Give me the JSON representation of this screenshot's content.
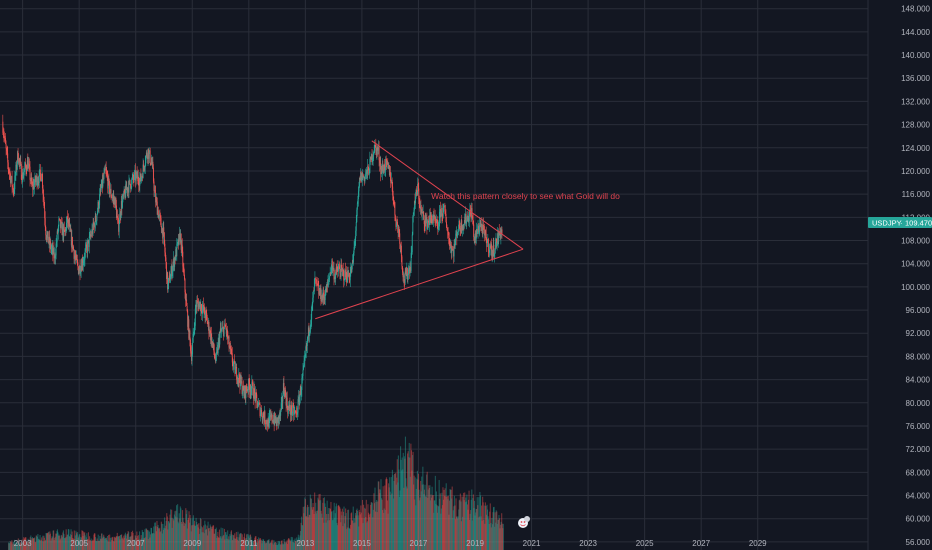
{
  "chart_data": {
    "type": "candlestick",
    "title": "",
    "xlabel": "",
    "ylabel": "",
    "symbol_badge": {
      "symbol": "USDJPY",
      "price_text": "109.470",
      "color": "#26a69a"
    },
    "y_ticks": [
      "56.000",
      "60.000",
      "64.000",
      "68.000",
      "72.000",
      "76.000",
      "80.000",
      "84.000",
      "88.000",
      "92.000",
      "96.000",
      "100.000",
      "104.000",
      "108.000",
      "112.000",
      "116.000",
      "120.000",
      "124.000",
      "128.000",
      "132.000",
      "136.000",
      "140.000",
      "144.000",
      "148.000"
    ],
    "x_ticks": [
      "2003",
      "2005",
      "2007",
      "2009",
      "2011",
      "2013",
      "2015",
      "2017",
      "2019",
      "2021",
      "2023",
      "2025",
      "2027",
      "2029"
    ],
    "ylim": [
      54.6,
      149.5
    ],
    "xlim": [
      2002.2,
      2032.9
    ],
    "grid": true,
    "colors": {
      "up": "#26a69a",
      "down": "#ef5350",
      "annotation": "#e0434f",
      "background": "#131722",
      "grid": "#2a2e39"
    },
    "price_path": [
      [
        2002.3,
        128.5
      ],
      [
        2002.5,
        121
      ],
      [
        2002.7,
        116.5
      ],
      [
        2002.85,
        123
      ],
      [
        2003.0,
        119
      ],
      [
        2003.2,
        121.5
      ],
      [
        2003.35,
        117
      ],
      [
        2003.5,
        118.5
      ],
      [
        2003.7,
        119.5
      ],
      [
        2003.85,
        109
      ],
      [
        2004.0,
        107
      ],
      [
        2004.15,
        105
      ],
      [
        2004.3,
        111
      ],
      [
        2004.5,
        109
      ],
      [
        2004.6,
        111.5
      ],
      [
        2004.75,
        108
      ],
      [
        2004.9,
        104.5
      ],
      [
        2005.0,
        103
      ],
      [
        2005.15,
        104.5
      ],
      [
        2005.35,
        107.5
      ],
      [
        2005.6,
        111.5
      ],
      [
        2005.8,
        117
      ],
      [
        2005.95,
        120
      ],
      [
        2006.1,
        116.5
      ],
      [
        2006.3,
        114.5
      ],
      [
        2006.4,
        110
      ],
      [
        2006.5,
        114
      ],
      [
        2006.7,
        117
      ],
      [
        2006.85,
        118
      ],
      [
        2007.0,
        119
      ],
      [
        2007.2,
        118.5
      ],
      [
        2007.35,
        122
      ],
      [
        2007.45,
        123.5
      ],
      [
        2007.6,
        121
      ],
      [
        2007.7,
        115.5
      ],
      [
        2007.85,
        112
      ],
      [
        2008.0,
        109
      ],
      [
        2008.15,
        100
      ],
      [
        2008.3,
        103
      ],
      [
        2008.45,
        106
      ],
      [
        2008.6,
        109
      ],
      [
        2008.75,
        100
      ],
      [
        2008.9,
        92
      ],
      [
        2009.0,
        88
      ],
      [
        2009.15,
        97
      ],
      [
        2009.3,
        97
      ],
      [
        2009.5,
        95
      ],
      [
        2009.7,
        91
      ],
      [
        2009.85,
        87
      ],
      [
        2010.0,
        92
      ],
      [
        2010.2,
        93
      ],
      [
        2010.35,
        89
      ],
      [
        2010.5,
        86
      ],
      [
        2010.7,
        84
      ],
      [
        2010.85,
        81.5
      ],
      [
        2011.0,
        83
      ],
      [
        2011.15,
        82.5
      ],
      [
        2011.3,
        80
      ],
      [
        2011.5,
        78
      ],
      [
        2011.7,
        76.5
      ],
      [
        2011.85,
        77.5
      ],
      [
        2012.0,
        76.5
      ],
      [
        2012.15,
        78
      ],
      [
        2012.25,
        83
      ],
      [
        2012.4,
        79
      ],
      [
        2012.55,
        78.5
      ],
      [
        2012.7,
        78
      ],
      [
        2012.85,
        82
      ],
      [
        2013.0,
        87
      ],
      [
        2013.1,
        91
      ],
      [
        2013.25,
        96
      ],
      [
        2013.35,
        101
      ],
      [
        2013.5,
        99
      ],
      [
        2013.65,
        98
      ],
      [
        2013.8,
        100
      ],
      [
        2013.95,
        104
      ],
      [
        2014.05,
        102
      ],
      [
        2014.2,
        103
      ],
      [
        2014.4,
        102
      ],
      [
        2014.6,
        102
      ],
      [
        2014.7,
        104
      ],
      [
        2014.8,
        110
      ],
      [
        2014.95,
        119
      ],
      [
        2015.1,
        119
      ],
      [
        2015.25,
        120
      ],
      [
        2015.45,
        124
      ],
      [
        2015.6,
        123.5
      ],
      [
        2015.7,
        120
      ],
      [
        2015.85,
        121
      ],
      [
        2016.0,
        120
      ],
      [
        2016.1,
        117
      ],
      [
        2016.2,
        112
      ],
      [
        2016.35,
        109
      ],
      [
        2016.5,
        101
      ],
      [
        2016.6,
        102
      ],
      [
        2016.75,
        104
      ],
      [
        2016.85,
        114
      ],
      [
        2017.0,
        117
      ],
      [
        2017.1,
        113
      ],
      [
        2017.3,
        111
      ],
      [
        2017.5,
        112
      ],
      [
        2017.7,
        110
      ],
      [
        2017.8,
        113
      ],
      [
        2017.95,
        113
      ],
      [
        2018.1,
        108
      ],
      [
        2018.25,
        106
      ],
      [
        2018.4,
        110
      ],
      [
        2018.6,
        111
      ],
      [
        2018.75,
        112
      ],
      [
        2018.9,
        113
      ],
      [
        2019.0,
        108
      ],
      [
        2019.2,
        111
      ],
      [
        2019.35,
        109
      ],
      [
        2019.5,
        107
      ],
      [
        2019.65,
        106
      ],
      [
        2019.8,
        108
      ],
      [
        2019.9,
        109.5
      ],
      [
        2019.97,
        109.47
      ]
    ],
    "volume": {
      "start": 2002.5,
      "end": 2020.0,
      "axis_base": 54.6,
      "profile": [
        [
          2002.5,
          56
        ],
        [
          2004.5,
          58
        ],
        [
          2006.0,
          57
        ],
        [
          2007.5,
          58
        ],
        [
          2008.0,
          60
        ],
        [
          2008.5,
          62
        ],
        [
          2009.0,
          60
        ],
        [
          2010.0,
          58
        ],
        [
          2011.0,
          57
        ],
        [
          2012.0,
          56
        ],
        [
          2012.8,
          57
        ],
        [
          2013.0,
          65
        ],
        [
          2013.3,
          64
        ],
        [
          2013.8,
          62
        ],
        [
          2014.5,
          61
        ],
        [
          2015.0,
          62
        ],
        [
          2015.5,
          65
        ],
        [
          2016.0,
          66
        ],
        [
          2016.3,
          70
        ],
        [
          2016.6,
          73
        ],
        [
          2016.9,
          68
        ],
        [
          2017.5,
          66
        ],
        [
          2018.0,
          65
        ],
        [
          2018.5,
          63
        ],
        [
          2019.0,
          64
        ],
        [
          2019.5,
          62
        ],
        [
          2020.0,
          60
        ]
      ]
    },
    "annotations": [
      {
        "type": "trendline",
        "color": "#e0434f",
        "points": [
          [
            2015.35,
            125.2
          ],
          [
            2020.7,
            106.5
          ]
        ]
      },
      {
        "type": "trendline",
        "color": "#e0434f",
        "points": [
          [
            2013.35,
            94.5
          ],
          [
            2020.7,
            106.5
          ]
        ]
      },
      {
        "type": "text",
        "text": "Watch this pattern closely to see what Gold will do",
        "x": 2017.45,
        "y": 115.2
      }
    ],
    "watermark_icon": "emoji-face-icon"
  }
}
